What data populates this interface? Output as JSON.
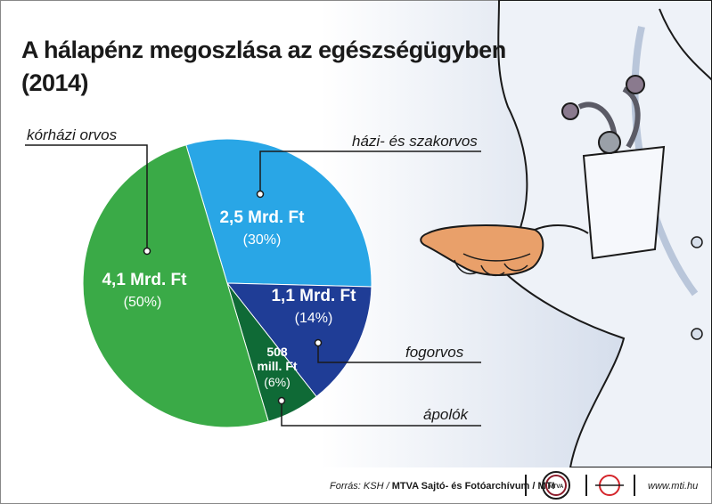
{
  "title_line1": "A hálapénz megoszlása az egészségügyben",
  "title_line2": "(2014)",
  "chart_data": {
    "type": "pie",
    "title": "A hálapénz megoszlása az egészségügyben (2014)",
    "slices": [
      {
        "name": "kórházi orvos",
        "value_label": "4,1 Mrd. Ft",
        "percent_label": "(50%)",
        "percent": 50,
        "color": "#3aaa47"
      },
      {
        "name": "házi- és szakorvos",
        "value_label": "2,5 Mrd. Ft",
        "percent_label": "(30%)",
        "percent": 30,
        "color": "#29a6e6"
      },
      {
        "name": "fogorvos",
        "value_label": "1,1 Mrd. Ft",
        "percent_label": "(14%)",
        "percent": 14,
        "color": "#1f3d96"
      },
      {
        "name": "ápolók",
        "value_label": "508 mill. Ft",
        "percent_label": "(6%)",
        "percent": 6,
        "color": "#0f6a36"
      }
    ]
  },
  "footer": {
    "source_prefix": "Forrás: KSH / ",
    "source_bold": "MTVA Sajtó- és Fotóarchívum / MTI",
    "website": "www.mti.hu"
  }
}
